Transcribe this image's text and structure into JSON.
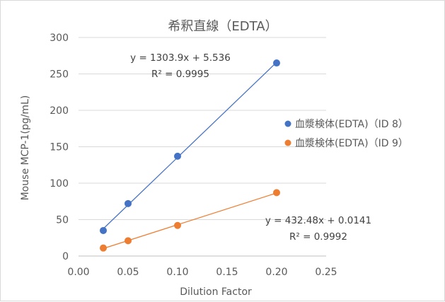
{
  "chart_data": {
    "type": "scatter",
    "title": "希釈直線（EDTA）",
    "xlabel": "Dilution Factor",
    "ylabel": "Mouse MCP-1(pg/mL)",
    "xlim": [
      0,
      0.25
    ],
    "ylim": [
      0,
      300
    ],
    "x_ticks": [
      "0.00",
      "0.05",
      "0.10",
      "0.15",
      "0.20",
      "0.25"
    ],
    "y_ticks": [
      "0",
      "50",
      "100",
      "150",
      "200",
      "250",
      "300"
    ],
    "grid": "horizontal",
    "legend_position": "right",
    "series": [
      {
        "name": "血漿検体(EDTA)（ID 8）",
        "color": "#4472c4",
        "x": [
          0.025,
          0.05,
          0.1,
          0.2
        ],
        "y": [
          35,
          72,
          137,
          265
        ],
        "trendline": {
          "equation": "y = 1303.9x + 5.536",
          "r2": "R² = 0.9995"
        }
      },
      {
        "name": "血漿検体(EDTA)（ID 9）",
        "color": "#ed7d31",
        "x": [
          0.025,
          0.05,
          0.1,
          0.2
        ],
        "y": [
          11,
          21,
          42,
          87
        ],
        "trendline": {
          "equation": "y = 432.48x + 0.0141",
          "r2": "R² = 0.9992"
        }
      }
    ]
  }
}
